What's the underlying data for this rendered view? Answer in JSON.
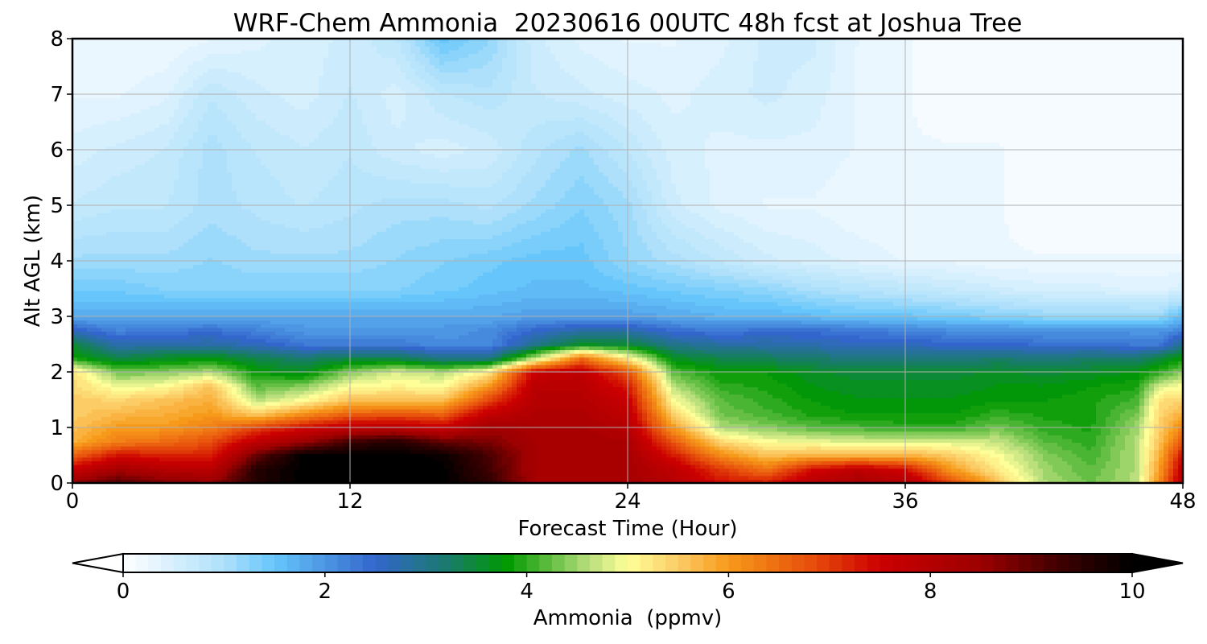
{
  "chart_data": {
    "type": "heatmap",
    "title": "WRF-Chem Ammonia  20230616 00UTC 48h fcst at Joshua Tree",
    "xlabel": "Forecast Time (Hour)",
    "ylabel": "Alt AGL (km)",
    "xlim": [
      0,
      48
    ],
    "ylim": [
      0,
      8
    ],
    "xticks": [
      "0",
      "12",
      "24",
      "36",
      "48"
    ],
    "yticks": [
      "0",
      "1",
      "2",
      "3",
      "4",
      "5",
      "6",
      "7",
      "8"
    ],
    "grid": true,
    "colorbar": {
      "label": "Ammonia  (ppmv)",
      "range": [
        0,
        10
      ],
      "ticks": [
        "0",
        "2",
        "4",
        "6",
        "8",
        "10"
      ],
      "extend": "both",
      "orientation": "horizontal",
      "stops": [
        {
          "v": 0.0,
          "c": "#ffffff"
        },
        {
          "v": 1.0,
          "c": "#aee0fb"
        },
        {
          "v": 1.5,
          "c": "#66c6fb"
        },
        {
          "v": 2.5,
          "c": "#3366cc"
        },
        {
          "v": 3.2,
          "c": "#1a7a6e"
        },
        {
          "v": 3.8,
          "c": "#009900"
        },
        {
          "v": 4.6,
          "c": "#b5dd7a"
        },
        {
          "v": 5.0,
          "c": "#ffff99"
        },
        {
          "v": 5.5,
          "c": "#fccc66"
        },
        {
          "v": 6.0,
          "c": "#f79a1a"
        },
        {
          "v": 6.8,
          "c": "#e8500c"
        },
        {
          "v": 7.5,
          "c": "#cc0000"
        },
        {
          "v": 8.5,
          "c": "#9c0000"
        },
        {
          "v": 9.3,
          "c": "#3d0000"
        },
        {
          "v": 10.0,
          "c": "#000000"
        }
      ]
    },
    "field": {
      "x_hours": [
        0,
        2,
        4,
        6,
        8,
        10,
        12,
        14,
        16,
        18,
        20,
        22,
        24,
        26,
        28,
        30,
        32,
        34,
        36,
        38,
        40,
        42,
        44,
        46,
        47,
        48
      ],
      "y_km": [
        0.0,
        0.25,
        0.5,
        0.75,
        1.0,
        1.25,
        1.5,
        1.75,
        2.0,
        2.25,
        2.5,
        2.75,
        3.0,
        3.5,
        4.0,
        5.0,
        6.0,
        7.0,
        8.0
      ],
      "values": [
        [
          8.6,
          9.2,
          8.8,
          8.6,
          9.6,
          10.0,
          10.0,
          10.0,
          10.0,
          9.5,
          8.3,
          8.3,
          8.3,
          8.0,
          7.4,
          7.3,
          8.0,
          8.3,
          8.1,
          7.0,
          5.6,
          4.6,
          4.3,
          4.6,
          6.2,
          8.0
        ],
        [
          7.6,
          8.3,
          8.0,
          7.9,
          9.6,
          10.0,
          10.0,
          10.0,
          10.0,
          9.3,
          8.3,
          8.3,
          8.3,
          7.8,
          7.0,
          6.4,
          7.4,
          7.8,
          7.4,
          6.0,
          5.2,
          4.5,
          4.2,
          4.6,
          6.0,
          7.8
        ],
        [
          6.6,
          7.4,
          7.2,
          7.2,
          9.0,
          10.0,
          10.0,
          10.0,
          9.9,
          9.2,
          8.3,
          8.3,
          8.3,
          7.3,
          6.2,
          5.6,
          5.8,
          5.8,
          5.8,
          5.5,
          5.0,
          4.4,
          4.1,
          4.6,
          5.8,
          7.4
        ],
        [
          5.8,
          6.3,
          6.5,
          6.8,
          7.8,
          8.5,
          9.3,
          9.6,
          9.0,
          8.8,
          8.3,
          8.3,
          8.2,
          6.7,
          5.4,
          5.0,
          4.9,
          4.8,
          4.8,
          4.8,
          4.7,
          4.2,
          4.0,
          4.6,
          5.6,
          6.8
        ],
        [
          5.6,
          6.0,
          6.0,
          6.3,
          6.9,
          7.4,
          7.8,
          7.9,
          7.6,
          8.4,
          8.2,
          8.2,
          8.0,
          6.0,
          4.6,
          4.4,
          4.2,
          4.1,
          4.0,
          4.0,
          4.3,
          4.0,
          3.9,
          4.5,
          5.5,
          6.2
        ],
        [
          5.5,
          5.7,
          5.8,
          6.0,
          5.5,
          6.1,
          6.6,
          6.7,
          6.6,
          7.7,
          8.1,
          8.1,
          7.8,
          5.4,
          4.3,
          4.1,
          3.9,
          3.8,
          3.8,
          3.8,
          4.0,
          3.9,
          3.9,
          4.3,
          5.4,
          5.8
        ],
        [
          5.5,
          5.4,
          5.6,
          5.8,
          4.6,
          5.0,
          5.6,
          5.6,
          5.6,
          6.9,
          8.0,
          8.0,
          7.6,
          5.0,
          4.2,
          4.0,
          3.8,
          3.7,
          3.7,
          3.7,
          3.8,
          3.8,
          3.9,
          4.1,
          5.3,
          5.4
        ],
        [
          5.4,
          4.9,
          5.0,
          5.6,
          4.2,
          4.4,
          5.0,
          5.1,
          5.0,
          6.0,
          7.9,
          7.9,
          7.3,
          4.6,
          4.0,
          3.9,
          3.7,
          3.6,
          3.6,
          3.6,
          3.7,
          3.7,
          3.8,
          3.9,
          4.8,
          5.0
        ],
        [
          5.3,
          4.3,
          4.4,
          4.6,
          3.8,
          3.6,
          4.4,
          4.8,
          4.6,
          5.2,
          7.6,
          7.8,
          6.8,
          4.2,
          3.8,
          3.8,
          3.6,
          3.5,
          3.5,
          3.5,
          3.6,
          3.5,
          3.6,
          3.7,
          4.0,
          4.4
        ],
        [
          3.9,
          3.4,
          3.6,
          3.7,
          3.4,
          3.2,
          3.4,
          3.4,
          3.0,
          3.0,
          4.6,
          6.5,
          5.2,
          3.6,
          3.4,
          3.3,
          3.2,
          3.1,
          3.1,
          3.1,
          3.2,
          3.1,
          3.2,
          3.2,
          3.5,
          3.8
        ],
        [
          3.5,
          2.7,
          2.8,
          2.8,
          2.6,
          2.3,
          2.3,
          2.3,
          2.1,
          2.1,
          3.0,
          3.6,
          3.5,
          3.0,
          2.8,
          2.8,
          2.7,
          2.6,
          2.6,
          2.5,
          2.5,
          2.4,
          2.4,
          2.3,
          2.3,
          3.0
        ],
        [
          2.6,
          2.2,
          2.3,
          2.4,
          2.2,
          2.0,
          2.0,
          2.0,
          2.0,
          2.1,
          2.5,
          2.8,
          2.8,
          2.4,
          2.3,
          2.4,
          2.4,
          2.3,
          2.2,
          2.1,
          2.1,
          2.0,
          2.0,
          2.0,
          2.0,
          2.2
        ],
        [
          1.8,
          1.8,
          1.8,
          1.8,
          1.8,
          1.8,
          1.8,
          1.8,
          1.8,
          1.8,
          1.9,
          1.9,
          1.9,
          1.8,
          1.7,
          1.7,
          1.6,
          1.5,
          1.5,
          1.4,
          1.3,
          1.2,
          1.2,
          1.2,
          1.2,
          1.6
        ],
        [
          1.4,
          1.4,
          1.3,
          1.3,
          1.3,
          1.3,
          1.3,
          1.3,
          1.4,
          1.5,
          1.6,
          1.6,
          1.5,
          1.4,
          1.3,
          1.2,
          1.0,
          0.9,
          0.8,
          0.7,
          0.6,
          0.5,
          0.5,
          0.4,
          0.4,
          0.5
        ],
        [
          1.1,
          1.1,
          1.1,
          1.2,
          1.1,
          1.1,
          1.1,
          1.2,
          1.3,
          1.4,
          1.5,
          1.5,
          1.2,
          1.0,
          0.8,
          0.6,
          0.5,
          0.4,
          0.3,
          0.3,
          0.2,
          0.2,
          0.2,
          0.2,
          0.2,
          0.2
        ],
        [
          0.7,
          0.8,
          0.8,
          1.0,
          0.9,
          0.8,
          0.9,
          1.0,
          1.0,
          0.9,
          1.1,
          1.3,
          1.1,
          0.6,
          0.4,
          0.3,
          0.3,
          0.2,
          0.2,
          0.2,
          0.2,
          0.1,
          0.1,
          0.1,
          0.1,
          0.1
        ],
        [
          0.5,
          0.6,
          0.7,
          1.0,
          0.8,
          0.7,
          0.8,
          0.6,
          0.5,
          0.6,
          0.9,
          1.1,
          0.8,
          0.5,
          0.4,
          0.4,
          0.4,
          0.3,
          0.2,
          0.2,
          0.2,
          0.1,
          0.1,
          0.1,
          0.1,
          0.1
        ],
        [
          0.3,
          0.3,
          0.4,
          0.8,
          0.6,
          0.5,
          0.7,
          0.5,
          0.8,
          0.9,
          0.7,
          0.6,
          0.5,
          0.4,
          0.5,
          0.6,
          0.5,
          0.3,
          0.2,
          0.1,
          0.1,
          0.1,
          0.1,
          0.1,
          0.1,
          0.1
        ],
        [
          0.2,
          0.2,
          0.2,
          0.3,
          0.4,
          0.5,
          0.6,
          0.8,
          1.5,
          1.2,
          0.6,
          0.4,
          0.3,
          0.3,
          0.4,
          0.6,
          0.6,
          0.3,
          0.2,
          0.1,
          0.1,
          0.1,
          0.1,
          0.1,
          0.1,
          0.1
        ]
      ]
    }
  }
}
